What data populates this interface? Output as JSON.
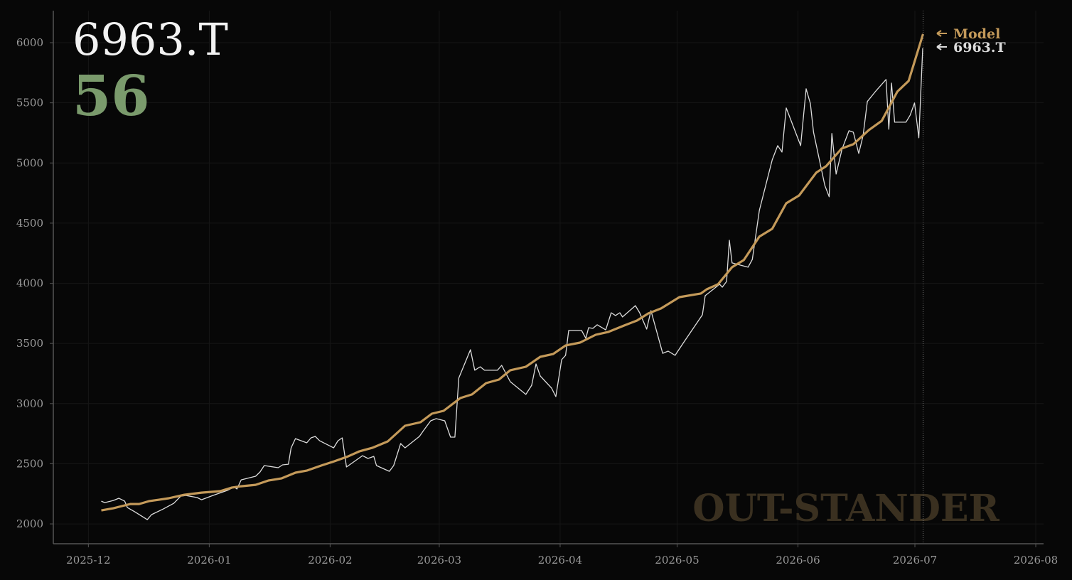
{
  "chart_data": {
    "type": "line",
    "title": "6963.T",
    "score": 56,
    "watermark": "OUT-STANDER",
    "xlim": [
      -9,
      245
    ],
    "xticks": [
      {
        "value": 0,
        "label": "2025-12"
      },
      {
        "value": 31,
        "label": "2026-01"
      },
      {
        "value": 62,
        "label": "2026-02"
      },
      {
        "value": 90,
        "label": "2026-03"
      },
      {
        "value": 121,
        "label": "2026-04"
      },
      {
        "value": 151,
        "label": "2026-05"
      },
      {
        "value": 182,
        "label": "2026-06"
      },
      {
        "value": 212,
        "label": "2026-07"
      },
      {
        "value": 243,
        "label": "2026-08"
      }
    ],
    "ylim": [
      1835,
      6266
    ],
    "yticks": [
      2000,
      2500,
      3000,
      3500,
      4000,
      4500,
      5000,
      5500,
      6000
    ],
    "grid": true,
    "series": [
      {
        "name": "Model",
        "color": "#c49a5a",
        "x": [
          3.3,
          6.4,
          8.6,
          10.8,
          13,
          15.5,
          18.1,
          20.6,
          24.6,
          29,
          33.8,
          36.7,
          39.2,
          42.9,
          46.2,
          49.5,
          53.1,
          56,
          59.7,
          63,
          66.6,
          69.5,
          72.8,
          76.8,
          81.2,
          85.2,
          88.1,
          91.1,
          95.4,
          98.4,
          102,
          105.3,
          108.2,
          112.2,
          115.9,
          119.2,
          122.4,
          126.1,
          130.1,
          133.4,
          137.4,
          140.7,
          143.6,
          146.9,
          151.6,
          157.1,
          158.6,
          161.5,
          165.1,
          168.1,
          172.1,
          175.4,
          179,
          182.3,
          186.7,
          189.2,
          193.2,
          196.2,
          200.2,
          203.5,
          207.5,
          210.4,
          214.1
        ],
        "values": [
          2112,
          2130,
          2148,
          2165,
          2165,
          2189,
          2201,
          2213,
          2242,
          2260,
          2272,
          2301,
          2313,
          2325,
          2361,
          2378,
          2426,
          2443,
          2485,
          2520,
          2561,
          2603,
          2632,
          2686,
          2816,
          2845,
          2916,
          2940,
          3046,
          3076,
          3170,
          3200,
          3277,
          3306,
          3389,
          3412,
          3483,
          3507,
          3572,
          3596,
          3649,
          3690,
          3749,
          3791,
          3885,
          3915,
          3950,
          3992,
          4134,
          4193,
          4388,
          4453,
          4665,
          4730,
          4920,
          4973,
          5120,
          5156,
          5274,
          5351,
          5593,
          5682,
          6072
        ]
      },
      {
        "name": "6963.T",
        "color": "#dcdcdc",
        "x": [
          3.3,
          4.2,
          6.4,
          7.8,
          8.6,
          9.3,
          10,
          11.9,
          15.1,
          16.2,
          19.2,
          21.9,
          23.7,
          25,
          27.9,
          29,
          31.9,
          35.6,
          37.4,
          38.1,
          39.2,
          42.9,
          44,
          45.1,
          48.7,
          49.8,
          51.3,
          52,
          53.1,
          56,
          57.1,
          58.2,
          59.3,
          62.9,
          64,
          65.1,
          66.2,
          70.3,
          71.7,
          73.2,
          73.9,
          77.2,
          78.3,
          80.1,
          81.2,
          84.9,
          85.9,
          87.8,
          89.2,
          91.4,
          92.9,
          94,
          95,
          98,
          99.1,
          100.5,
          101.6,
          104.9,
          106,
          108.2,
          112.2,
          113.7,
          114.8,
          115.9,
          118.8,
          119.9,
          121.4,
          122.4,
          123.2,
          126.5,
          127.6,
          128.3,
          129.4,
          130.5,
          132.7,
          134.1,
          135.2,
          136.3,
          137,
          140.3,
          141.4,
          143.2,
          144.3,
          147.3,
          148.7,
          150.5,
          152.4,
          157.5,
          158.2,
          161.9,
          162.6,
          163.7,
          164.4,
          165.1,
          169.2,
          170.3,
          172.1,
          175.4,
          176.8,
          177.9,
          179,
          182.7,
          184.1,
          185.2,
          186,
          188.9,
          190,
          190.7,
          191.8,
          193.3,
          195.1,
          196.2,
          197.6,
          198.7,
          199.8,
          202,
          204.6,
          205.3,
          206,
          206.8,
          209.7,
          210.8,
          211.9,
          213,
          214
        ],
        "values": [
          2189,
          2177,
          2195,
          2213,
          2201,
          2189,
          2136,
          2100,
          2035,
          2077,
          2124,
          2171,
          2230,
          2236,
          2219,
          2201,
          2236,
          2278,
          2307,
          2290,
          2366,
          2396,
          2431,
          2485,
          2467,
          2491,
          2496,
          2632,
          2709,
          2674,
          2715,
          2727,
          2691,
          2632,
          2691,
          2715,
          2473,
          2567,
          2544,
          2561,
          2485,
          2437,
          2485,
          2668,
          2632,
          2727,
          2774,
          2857,
          2875,
          2857,
          2721,
          2721,
          3212,
          3448,
          3277,
          3306,
          3277,
          3277,
          3318,
          3182,
          3076,
          3152,
          3330,
          3229,
          3129,
          3058,
          3365,
          3401,
          3608,
          3608,
          3543,
          3631,
          3625,
          3655,
          3613,
          3755,
          3732,
          3755,
          3720,
          3814,
          3755,
          3619,
          3773,
          3418,
          3436,
          3401,
          3495,
          3738,
          3897,
          3992,
          3968,
          4015,
          4358,
          4169,
          4134,
          4198,
          4606,
          5026,
          5144,
          5091,
          5457,
          5144,
          5617,
          5493,
          5256,
          4813,
          4719,
          5245,
          4908,
          5115,
          5268,
          5256,
          5079,
          5227,
          5511,
          5599,
          5694,
          5280,
          5664,
          5339,
          5339,
          5398,
          5499,
          5209,
          5954
        ]
      }
    ]
  }
}
